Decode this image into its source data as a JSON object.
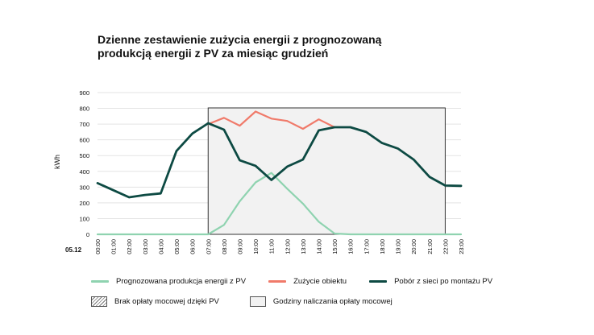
{
  "chart_data": {
    "type": "line",
    "title": "Dzienne zestawienie zużycia energii z prognozowaną produkcją energii z PV za miesiąc grudzień",
    "title_lines": [
      "Dzienne zestawienie zużycia energii z prognozowaną",
      "produkcją energii z PV za miesiąc grudzień"
    ],
    "ylabel": "kWh",
    "date_label": "05.12",
    "ylim": [
      0,
      900
    ],
    "yticks": [
      0,
      100,
      200,
      300,
      400,
      500,
      600,
      700,
      800,
      900
    ],
    "categories": [
      "00:00",
      "01:00",
      "02:00",
      "03:00",
      "04:00",
      "05:00",
      "06:00",
      "07:00",
      "08:00",
      "09:00",
      "10:00",
      "11:00",
      "12:00",
      "13:00",
      "14:00",
      "15:00",
      "16:00",
      "17:00",
      "18:00",
      "19:00",
      "20:00",
      "21:00",
      "22:00",
      "23:00"
    ],
    "shaded_region": {
      "label": "Godziny naliczania opłaty mocowej",
      "from": "07:00",
      "to": "22:00",
      "color": "#f2f2f2"
    },
    "series": [
      {
        "name": "Prognozowana produkcja energii z PV",
        "color": "#8fd3b0",
        "values": [
          0,
          0,
          0,
          0,
          0,
          0,
          0,
          0,
          60,
          210,
          330,
          390,
          290,
          195,
          80,
          5,
          0,
          0,
          0,
          0,
          0,
          0,
          0,
          0
        ]
      },
      {
        "name": "Zużycie obiektu",
        "color": "#f07a6a",
        "values": [
          null,
          null,
          null,
          null,
          null,
          null,
          null,
          700,
          740,
          690,
          780,
          735,
          720,
          670,
          730,
          680,
          null,
          null,
          null,
          null,
          null,
          null,
          null,
          null
        ]
      },
      {
        "name": "Pobór z sieci po montażu PV",
        "color": "#0d4a43",
        "values": [
          325,
          280,
          235,
          250,
          260,
          530,
          640,
          705,
          665,
          470,
          435,
          345,
          430,
          475,
          660,
          680,
          680,
          650,
          580,
          545,
          475,
          365,
          310,
          308
        ]
      }
    ],
    "legend": {
      "row1": [
        "Prognozowana produkcja energii z PV",
        "Zużycie obiektu",
        "Pobór z sieci po montażu PV"
      ],
      "row2": [
        "Brak opłaty mocowej dzięki PV",
        "Godziny naliczania opłaty mocowej"
      ]
    }
  }
}
